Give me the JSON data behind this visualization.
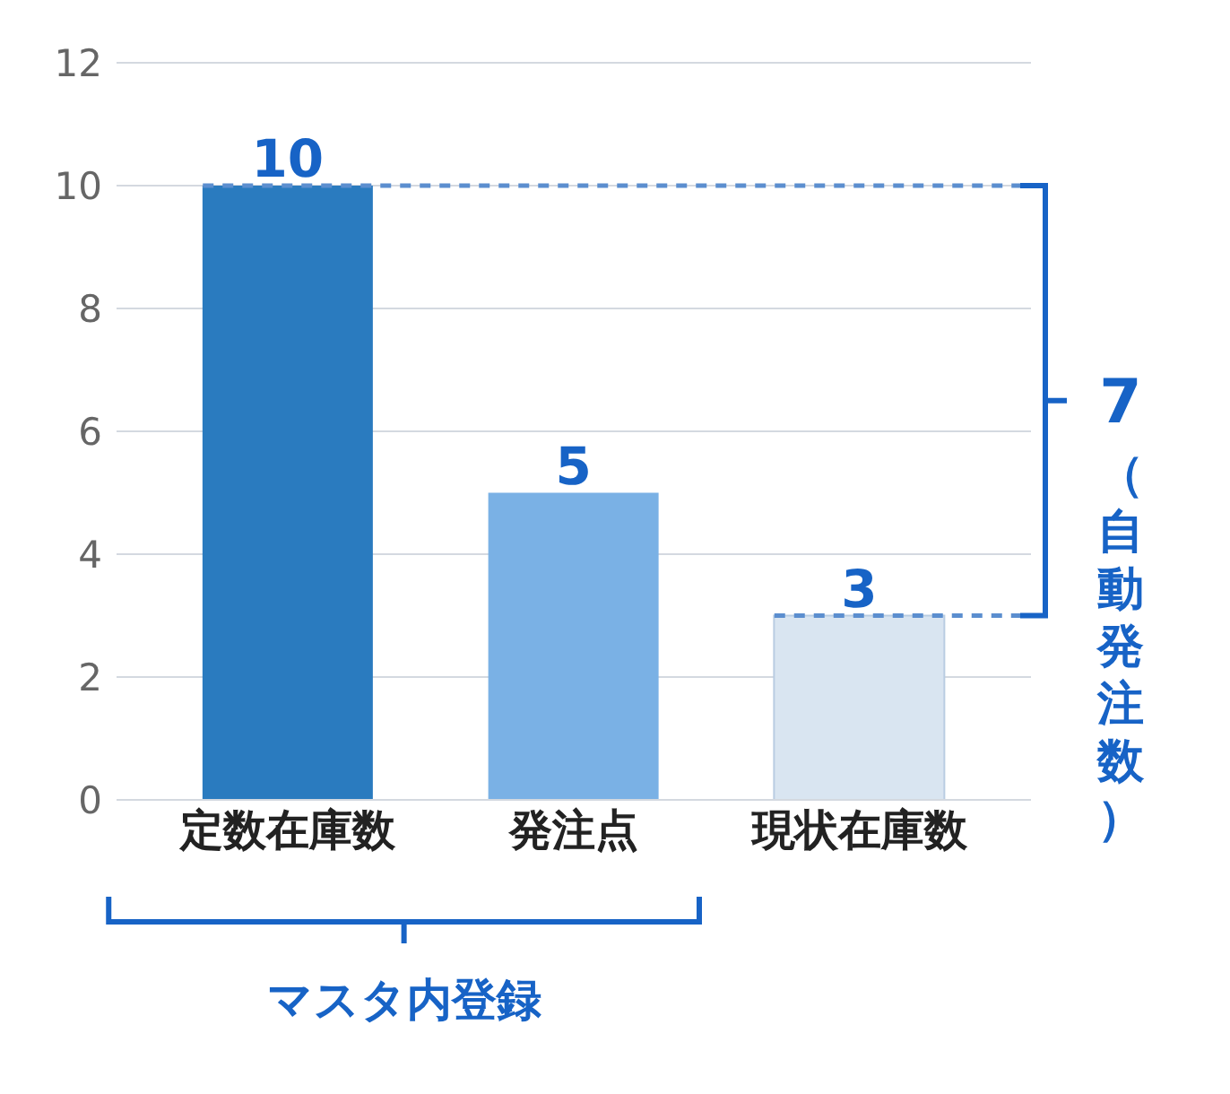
{
  "chart_data": {
    "type": "bar",
    "categories": [
      "定数在庫数",
      "発注点",
      "現状在庫数"
    ],
    "values": [
      10,
      5,
      3
    ],
    "colors": [
      "#2a7bbf",
      "#7ab1e5",
      "#d9e5f1"
    ],
    "ylim": [
      0,
      12
    ],
    "yticks": [
      0,
      2,
      4,
      6,
      8,
      10,
      12
    ],
    "grid": "y",
    "data_labels": true,
    "ref_lines": [
      {
        "axis": "y",
        "value": 10,
        "color": "#5b8ecf",
        "line_style": "dashed"
      },
      {
        "axis": "y",
        "value": 3,
        "color": "#5b8ecf",
        "line_style": "dashed"
      }
    ],
    "annotations": [
      "7",
      "（自動発注数）",
      "マスタ内登録"
    ]
  }
}
